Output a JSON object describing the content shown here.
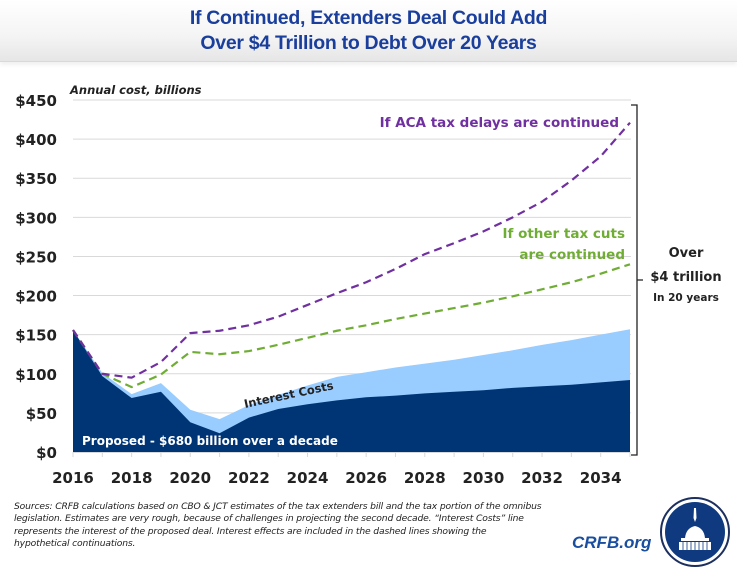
{
  "title": {
    "line1": "If Continued, Extenders Deal Could Add",
    "line2": "Over $4 Trillion to Debt Over 20 Years"
  },
  "chart_data": {
    "type": "area",
    "title": "If Continued, Extenders Deal Could Add Over $4 Trillion to Debt Over 20 Years",
    "ylabel": "Annual cost, billions",
    "xlabel": "",
    "x": [
      2016,
      2017,
      2018,
      2019,
      2020,
      2021,
      2022,
      2023,
      2024,
      2025,
      2026,
      2027,
      2028,
      2029,
      2030,
      2031,
      2032,
      2033,
      2034,
      2035
    ],
    "xlim": [
      2016,
      2035
    ],
    "ylim": [
      0,
      450
    ],
    "yticks": [
      0,
      50,
      100,
      150,
      200,
      250,
      300,
      350,
      400,
      450
    ],
    "ytick_labels": [
      "$0",
      "$50",
      "$100",
      "$150",
      "$200",
      "$250",
      "$300",
      "$350",
      "$400",
      "$450"
    ],
    "xticks": [
      2016,
      2018,
      2020,
      2022,
      2024,
      2026,
      2028,
      2030,
      2032,
      2034
    ],
    "xtick_labels": [
      "2016",
      "2018",
      "2020",
      "2022",
      "2024",
      "2026",
      "2028",
      "2030",
      "2032",
      "2034"
    ],
    "grid": true,
    "series": [
      {
        "name": "Proposed - $680 billion over a decade",
        "kind": "area",
        "color": "#003575",
        "values": [
          156,
          97,
          69,
          77,
          38,
          24,
          44,
          55,
          61,
          66,
          70,
          72,
          75,
          77,
          79,
          82,
          84,
          86,
          89,
          92
        ]
      },
      {
        "name": "Interest Costs",
        "kind": "stacked-area-top",
        "color": "#99ccff",
        "values": [
          156,
          101,
          74,
          88,
          54,
          42,
          60,
          73,
          85,
          96,
          102,
          108,
          113,
          118,
          124,
          130,
          137,
          143,
          150,
          157
        ]
      },
      {
        "name": "If other tax cuts are continued",
        "kind": "dashed-line",
        "color": "#70ad35",
        "values": [
          156,
          100,
          83,
          99,
          128,
          125,
          129,
          137,
          146,
          155,
          162,
          170,
          177,
          184,
          191,
          199,
          208,
          217,
          228,
          240
        ]
      },
      {
        "name": "If ACA tax delays are continued",
        "kind": "dashed-line",
        "color": "#7030a0",
        "values": [
          156,
          100,
          95,
          115,
          152,
          155,
          162,
          173,
          188,
          203,
          217,
          234,
          253,
          267,
          282,
          300,
          320,
          347,
          378,
          421
        ]
      }
    ],
    "annotations": {
      "area_label": "Proposed - $680 billion over a decade",
      "interest_label": "Interest Costs",
      "aca_label": "If ACA tax delays are continued",
      "other_label_line1": "If other tax cuts",
      "other_label_line2": "are continued",
      "bracket_line1": "Over",
      "bracket_line2": "$4 trillion",
      "bracket_line3": "In 20 years"
    }
  },
  "footer": {
    "sources": "Sources: CRFB calculations based on CBO & JCT estimates of the tax extenders bill and the tax portion of the omnibus legislation. Estimates are very rough, because of challenges in projecting the second decade. “Interest Costs” line represents the interest of the proposed deal. Interest effects are included in the dashed lines showing the hypothetical continuations.",
    "brand": "CRFB.org",
    "logo_icon": "capitol-dome-logo"
  }
}
